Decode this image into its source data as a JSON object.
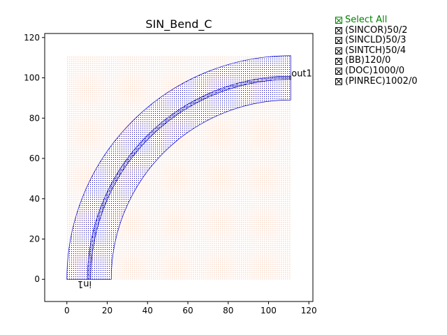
{
  "chart_data": {
    "type": "layout",
    "title": "SIN_Bend_C",
    "xlim": [
      -11,
      122
    ],
    "ylim": [
      -11,
      122
    ],
    "xticks": [
      0,
      20,
      40,
      60,
      80,
      100,
      120
    ],
    "yticks": [
      0,
      20,
      40,
      60,
      80,
      100,
      120
    ],
    "bend": {
      "center": [
        111,
        0
      ],
      "core_radius": 100,
      "core_width": 1.6,
      "outer_radius": 111,
      "inner_radius": 89
    },
    "bbox_region": {
      "x": [
        0,
        111
      ],
      "y": [
        0,
        111
      ]
    },
    "ports": [
      {
        "label": "in1",
        "x": 10.5,
        "y": 0,
        "rotated": true
      },
      {
        "label": "out1",
        "x": 111,
        "y": 100,
        "rotated": false
      }
    ],
    "colors": {
      "bend_fill": "#0000cc",
      "bbox_fill": "#fbd9c9"
    }
  },
  "legend": {
    "select_all": "Select All",
    "items": [
      "(SINCOR)50/2",
      "(SINCLD)50/3",
      "(SINTCH)50/4",
      "(BB)120/0",
      "(DOC)1000/0",
      "(PINREC)1002/0"
    ]
  }
}
